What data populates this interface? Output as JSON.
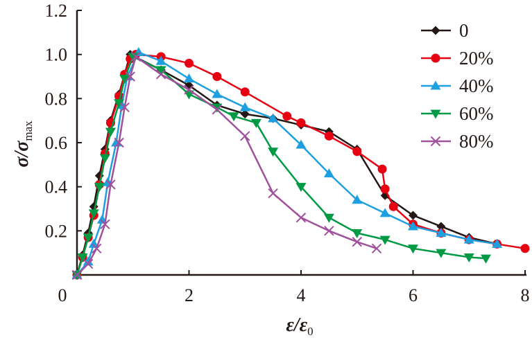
{
  "chart_data": {
    "type": "line",
    "title": "",
    "xlabel": {
      "main": "ε/ε",
      "sub": "0"
    },
    "ylabel": {
      "main": "σ/σ",
      "sub": "max"
    },
    "xlim": [
      0,
      8
    ],
    "ylim": [
      0,
      1.2
    ],
    "xticks": [
      "0",
      "2",
      "4",
      "6",
      "8"
    ],
    "xtick_values": [
      0,
      2,
      4,
      6,
      8
    ],
    "yticks": [
      "0.2",
      "0.4",
      "0.6",
      "0.8",
      "1.0",
      "1.2"
    ],
    "ytick_values": [
      0.2,
      0.4,
      0.6,
      0.8,
      1.0,
      1.2
    ],
    "grid": false,
    "legend_position": "top-right",
    "series": [
      {
        "name": "0",
        "color": "#231815",
        "marker": "diamond",
        "points": [
          [
            0,
            0
          ],
          [
            0.1,
            0.09
          ],
          [
            0.2,
            0.19
          ],
          [
            0.3,
            0.31
          ],
          [
            0.4,
            0.45
          ],
          [
            0.5,
            0.57
          ],
          [
            0.6,
            0.7
          ],
          [
            0.75,
            0.82
          ],
          [
            0.85,
            0.91
          ],
          [
            0.95,
            1.0
          ],
          [
            1.5,
            0.93
          ],
          [
            2,
            0.86
          ],
          [
            2.5,
            0.77
          ],
          [
            3,
            0.73
          ],
          [
            3.5,
            0.71
          ],
          [
            4,
            0.68
          ],
          [
            4.5,
            0.65
          ],
          [
            5,
            0.57
          ],
          [
            5.5,
            0.36
          ],
          [
            6,
            0.27
          ],
          [
            6.5,
            0.22
          ],
          [
            7,
            0.17
          ],
          [
            7.5,
            0.14
          ]
        ]
      },
      {
        "name": "20%",
        "color": "#e60012",
        "marker": "circle",
        "points": [
          [
            0,
            0
          ],
          [
            0.1,
            0.08
          ],
          [
            0.2,
            0.17
          ],
          [
            0.3,
            0.27
          ],
          [
            0.4,
            0.41
          ],
          [
            0.5,
            0.55
          ],
          [
            0.6,
            0.69
          ],
          [
            0.75,
            0.81
          ],
          [
            0.85,
            0.91
          ],
          [
            0.95,
            0.98
          ],
          [
            1.05,
            1.0
          ],
          [
            1.5,
            0.99
          ],
          [
            2,
            0.96
          ],
          [
            2.5,
            0.9
          ],
          [
            3,
            0.83
          ],
          [
            3.75,
            0.72
          ],
          [
            4,
            0.69
          ],
          [
            4.5,
            0.63
          ],
          [
            5,
            0.56
          ],
          [
            5.45,
            0.48
          ],
          [
            5.5,
            0.39
          ],
          [
            5.65,
            0.31
          ],
          [
            6,
            0.23
          ],
          [
            6.5,
            0.19
          ],
          [
            7,
            0.16
          ],
          [
            7.5,
            0.14
          ],
          [
            8,
            0.12
          ]
        ]
      },
      {
        "name": "40%",
        "color": "#1ea0e0",
        "marker": "triangle-up",
        "points": [
          [
            0,
            0
          ],
          [
            0.2,
            0.06
          ],
          [
            0.3,
            0.14
          ],
          [
            0.45,
            0.25
          ],
          [
            0.55,
            0.42
          ],
          [
            0.7,
            0.6
          ],
          [
            0.8,
            0.77
          ],
          [
            0.9,
            0.9
          ],
          [
            1.1,
            1.01
          ],
          [
            1.5,
            0.97
          ],
          [
            2,
            0.89
          ],
          [
            2.5,
            0.82
          ],
          [
            3,
            0.76
          ],
          [
            3.5,
            0.71
          ],
          [
            4,
            0.59
          ],
          [
            4.5,
            0.46
          ],
          [
            5,
            0.34
          ],
          [
            5.5,
            0.28
          ],
          [
            6,
            0.22
          ],
          [
            6.5,
            0.19
          ],
          [
            7,
            0.16
          ],
          [
            7.5,
            0.14
          ]
        ]
      },
      {
        "name": "60%",
        "color": "#009944",
        "marker": "triangle-down",
        "points": [
          [
            0,
            0
          ],
          [
            0.1,
            0.08
          ],
          [
            0.2,
            0.17
          ],
          [
            0.3,
            0.28
          ],
          [
            0.4,
            0.4
          ],
          [
            0.5,
            0.53
          ],
          [
            0.6,
            0.65
          ],
          [
            0.75,
            0.78
          ],
          [
            0.85,
            0.89
          ],
          [
            1.0,
            0.99
          ],
          [
            1.5,
            0.93
          ],
          [
            2,
            0.82
          ],
          [
            2.5,
            0.76
          ],
          [
            2.8,
            0.72
          ],
          [
            3.2,
            0.69
          ],
          [
            3.5,
            0.56
          ],
          [
            4,
            0.4
          ],
          [
            4.5,
            0.26
          ],
          [
            5,
            0.19
          ],
          [
            5.5,
            0.16
          ],
          [
            6,
            0.12
          ],
          [
            6.5,
            0.1
          ],
          [
            7,
            0.08
          ],
          [
            7.3,
            0.075
          ]
        ]
      },
      {
        "name": "80%",
        "color": "#a0519b",
        "marker": "cross",
        "points": [
          [
            0,
            0
          ],
          [
            0.2,
            0.05
          ],
          [
            0.35,
            0.12
          ],
          [
            0.5,
            0.23
          ],
          [
            0.6,
            0.41
          ],
          [
            0.75,
            0.6
          ],
          [
            0.85,
            0.76
          ],
          [
            0.95,
            0.9
          ],
          [
            1.05,
            0.99
          ],
          [
            1.5,
            0.91
          ],
          [
            2,
            0.84
          ],
          [
            2.5,
            0.75
          ],
          [
            3,
            0.63
          ],
          [
            3.5,
            0.37
          ],
          [
            4,
            0.26
          ],
          [
            4.5,
            0.2
          ],
          [
            5,
            0.15
          ],
          [
            5.35,
            0.12
          ]
        ]
      }
    ]
  }
}
